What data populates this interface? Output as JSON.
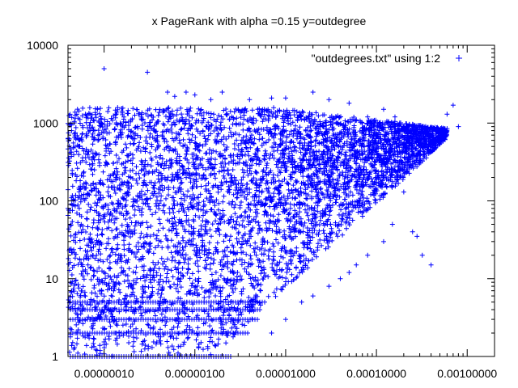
{
  "chart_data": {
    "type": "scatter",
    "title": "x PageRank with alpha =0.15 y=outdegree",
    "xlabel": "",
    "ylabel": "",
    "x_scale": "log",
    "y_scale": "log",
    "xlim": [
      4e-08,
      0.002
    ],
    "ylim": [
      1,
      10000
    ],
    "x_ticks": [
      1e-07,
      1e-06,
      1e-05,
      0.0001,
      0.001
    ],
    "x_tick_labels": [
      "0.00000010",
      "0.00000100",
      "0.00001000",
      "0.00010000",
      "0.00100000"
    ],
    "y_ticks": [
      1,
      10,
      100,
      1000,
      10000
    ],
    "y_tick_labels": [
      "1",
      "10",
      "100",
      "1000",
      "10000"
    ],
    "grid": false,
    "legend_position": "top-right",
    "series": [
      {
        "name": "\"outdegrees.txt\" using 1:2",
        "color": "#0000ff",
        "marker": "plus",
        "points": [
          [
            1e-07,
            5000
          ],
          [
            3e-07,
            4500
          ],
          [
            5e-07,
            2500
          ],
          [
            8e-07,
            2500
          ],
          [
            1.5e-06,
            2000
          ],
          [
            6e-07,
            2200
          ],
          [
            1e-06,
            2300
          ],
          [
            2e-06,
            2500
          ],
          [
            4e-06,
            2000
          ],
          [
            7e-06,
            2100
          ],
          [
            1e-05,
            2100
          ],
          [
            2e-05,
            2500
          ],
          [
            3e-05,
            2000
          ],
          [
            5e-05,
            1800
          ],
          [
            8e-05,
            1200
          ],
          [
            0.00012,
            1500
          ],
          [
            0.00016,
            1200
          ],
          [
            0.0002,
            800
          ],
          [
            0.0003,
            900
          ],
          [
            0.0004,
            700
          ],
          [
            0.0006,
            1300
          ],
          [
            0.0007,
            1700
          ],
          [
            0.0008,
            900
          ],
          [
            0.00015,
            1000
          ],
          [
            0.00016,
            1050
          ],
          [
            0.00017,
            980
          ],
          [
            0.00018,
            1000
          ],
          [
            0.0002,
            130
          ],
          [
            0.00025,
            40
          ],
          [
            0.00028,
            35
          ],
          [
            0.00032,
            20
          ],
          [
            0.0004,
            15
          ],
          [
            0.00015,
            50
          ],
          [
            0.00012,
            30
          ],
          [
            8e-05,
            20
          ],
          [
            6e-05,
            15
          ],
          [
            5e-05,
            12
          ],
          [
            4e-05,
            10
          ],
          [
            3e-05,
            8
          ],
          [
            2e-05,
            6
          ],
          [
            1.5e-05,
            5
          ],
          [
            1e-05,
            3
          ],
          [
            7e-06,
            2
          ],
          [
            4.5e-05,
            140
          ],
          [
            6e-05,
            300
          ],
          [
            9e-05,
            450
          ],
          [
            3e-05,
            350
          ]
        ]
      }
    ]
  },
  "colors": {
    "series": "#0000ff",
    "axes": "#000000",
    "background": "#ffffff"
  }
}
